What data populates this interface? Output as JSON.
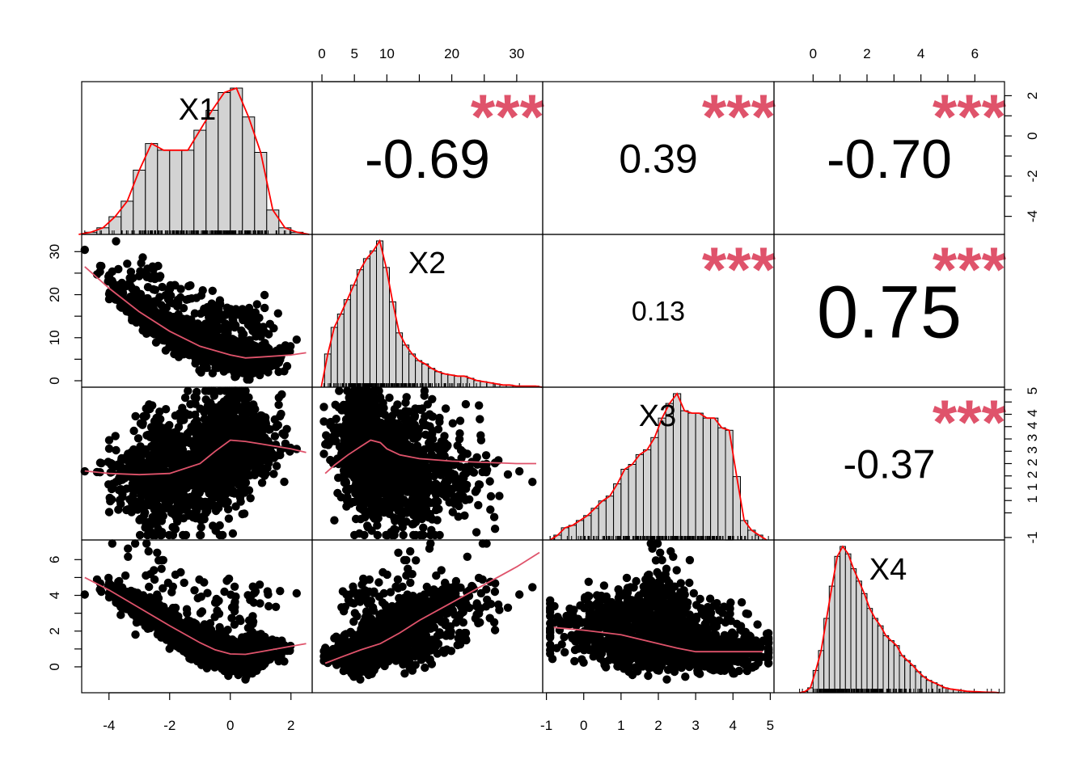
{
  "chart_data": {
    "type": "scatter",
    "title": "",
    "variables": [
      "X1",
      "X2",
      "X3",
      "X4"
    ],
    "ranges": {
      "X1": [
        -4.9,
        2.7
      ],
      "X2": [
        -1.5,
        34
      ],
      "X3": [
        -1.1,
        5.1
      ],
      "X4": [
        -1.45,
        7.1
      ]
    },
    "ticks": {
      "X1": [
        -4,
        -2,
        0,
        2
      ],
      "X2": [
        0,
        5,
        10,
        15,
        20,
        25,
        30
      ],
      "X3": [
        -1,
        0,
        1,
        2,
        3,
        4,
        5
      ],
      "X4": [
        0,
        1,
        2,
        3,
        4,
        5,
        6
      ]
    },
    "tick_labels": {
      "x1_bottom": [
        "-4",
        "-2",
        "0",
        "2"
      ],
      "x2_top": [
        "0",
        "5",
        "10",
        "20",
        "30"
      ],
      "x3_bottom": [
        "-1",
        "0",
        "1",
        "2",
        "3",
        "4",
        "5"
      ],
      "x4_top": [
        "0",
        "2",
        "4",
        "6"
      ],
      "y1_right": [
        "2",
        "0",
        "-2",
        "-4"
      ],
      "y2_left": [
        "0",
        "10",
        "20",
        "30"
      ],
      "y3_right": [
        "-1",
        "1",
        "1",
        "2",
        "2",
        "3",
        "3",
        "4",
        "4",
        "5"
      ],
      "y4_left": [
        "0",
        "2",
        "4",
        "6"
      ]
    },
    "histograms": {
      "X1": {
        "breaks": [
          -4.8,
          -4.4,
          -4.0,
          -3.6,
          -3.2,
          -2.8,
          -2.4,
          -2.0,
          -1.6,
          -1.2,
          -0.8,
          -0.4,
          0.0,
          0.4,
          0.8,
          1.2,
          1.6,
          2.0,
          2.4
        ],
        "density": [
          0.01,
          0.03,
          0.08,
          0.15,
          0.29,
          0.41,
          0.38,
          0.38,
          0.38,
          0.47,
          0.56,
          0.64,
          0.66,
          0.53,
          0.37,
          0.11,
          0.03,
          0.01
        ]
      },
      "X2": {
        "breaks": [
          0.4,
          1.4,
          2.4,
          3.4,
          4.4,
          5.4,
          6.4,
          7.4,
          8.4,
          9.4,
          10.4,
          11.4,
          12.4,
          13.4,
          14.4,
          15.4,
          16.4,
          17.4,
          18.4,
          19.4,
          20.4,
          21.4,
          22.4,
          23.4,
          24.4,
          25.4,
          26.4,
          27.4,
          28.4,
          29.4,
          30.4,
          31.4,
          32.4,
          33.4
        ],
        "density": [
          0.03,
          0.054,
          0.066,
          0.079,
          0.092,
          0.106,
          0.116,
          0.123,
          0.132,
          0.108,
          0.077,
          0.049,
          0.038,
          0.03,
          0.024,
          0.021,
          0.017,
          0.014,
          0.012,
          0.011,
          0.01,
          0.01,
          0.008,
          0.006,
          0.005,
          0.004,
          0.003,
          0.002,
          0.002,
          0.001,
          0.001,
          0.001,
          0.001
        ]
      },
      "X3": {
        "breaks": [
          -0.8,
          -0.6,
          -0.4,
          -0.2,
          0.0,
          0.2,
          0.4,
          0.6,
          0.8,
          1.0,
          1.2,
          1.4,
          1.6,
          1.8,
          2.0,
          2.2,
          2.4,
          2.6,
          2.8,
          3.0,
          3.2,
          3.4,
          3.6,
          3.8,
          4.0,
          4.2,
          4.4,
          4.6,
          4.8
        ],
        "density": [
          0.02,
          0.05,
          0.06,
          0.08,
          0.1,
          0.13,
          0.16,
          0.18,
          0.23,
          0.29,
          0.31,
          0.35,
          0.37,
          0.42,
          0.5,
          0.56,
          0.6,
          0.53,
          0.52,
          0.52,
          0.5,
          0.5,
          0.46,
          0.45,
          0.26,
          0.08,
          0.04,
          0.02
        ]
      },
      "X4": {
        "breaks": [
          -0.4,
          -0.2,
          0.0,
          0.2,
          0.4,
          0.6,
          0.8,
          1.0,
          1.2,
          1.4,
          1.6,
          1.8,
          2.0,
          2.2,
          2.4,
          2.6,
          2.8,
          3.0,
          3.2,
          3.4,
          3.6,
          3.8,
          4.0,
          4.2,
          4.4,
          4.6,
          4.8,
          5.0,
          5.2,
          5.4,
          5.6,
          5.8,
          6.0,
          6.2,
          6.4,
          6.6,
          6.8
        ],
        "density": [
          0.005,
          0.02,
          0.09,
          0.17,
          0.3,
          0.43,
          0.55,
          0.59,
          0.56,
          0.5,
          0.45,
          0.4,
          0.34,
          0.3,
          0.27,
          0.23,
          0.21,
          0.19,
          0.15,
          0.13,
          0.11,
          0.085,
          0.065,
          0.05,
          0.04,
          0.03,
          0.02,
          0.015,
          0.012,
          0.009,
          0.006,
          0.005,
          0.004,
          0.003,
          0.002,
          0.002
        ]
      }
    },
    "smooth_lines": {
      "X2_vs_X1": {
        "x": [
          -4.8,
          -4.0,
          -3.0,
          -2.0,
          -1.0,
          0.0,
          0.5,
          1.0,
          2.0,
          2.5
        ],
        "y": [
          26.5,
          21.5,
          16.0,
          11.5,
          8.0,
          6.0,
          5.3,
          5.5,
          6.0,
          6.5
        ]
      },
      "X3_vs_X1": {
        "x": [
          -4.8,
          -4.0,
          -3.0,
          -2.0,
          -1.0,
          -0.5,
          0.0,
          0.5,
          1.0,
          2.0,
          2.5
        ],
        "y": [
          1.7,
          1.6,
          1.55,
          1.6,
          2.0,
          2.5,
          2.95,
          2.9,
          2.8,
          2.6,
          2.45
        ]
      },
      "X3_vs_X2": {
        "x": [
          0.5,
          2.0,
          4.0,
          6.0,
          7.5,
          9.0,
          10.0,
          12.0,
          15.0,
          20.0,
          25.0,
          30.0,
          33.0
        ],
        "y": [
          1.6,
          1.95,
          2.35,
          2.7,
          2.95,
          2.85,
          2.6,
          2.35,
          2.2,
          2.1,
          2.05,
          2.0,
          2.0
        ]
      },
      "X4_vs_X1": {
        "x": [
          -4.8,
          -4.0,
          -3.0,
          -2.0,
          -1.0,
          -0.5,
          0.0,
          0.5,
          1.0,
          2.0,
          2.5
        ],
        "y": [
          5.0,
          4.3,
          3.3,
          2.3,
          1.35,
          0.95,
          0.72,
          0.7,
          0.85,
          1.15,
          1.3
        ]
      },
      "X4_vs_X2": {
        "x": [
          0.5,
          3.0,
          6.0,
          9.0,
          12.0,
          15.0,
          20.0,
          25.0,
          30.0,
          33.5
        ],
        "y": [
          0.2,
          0.55,
          0.95,
          1.3,
          1.9,
          2.6,
          3.6,
          4.6,
          5.6,
          6.4
        ]
      },
      "X4_vs_X3": {
        "x": [
          -0.8,
          0.0,
          1.0,
          2.0,
          2.5,
          3.0,
          4.0,
          4.8
        ],
        "y": [
          2.2,
          2.05,
          1.8,
          1.3,
          1.05,
          0.85,
          0.85,
          0.85
        ]
      }
    },
    "correlations": [
      {
        "pair": "X1-X2",
        "value": "-0.69",
        "stars": "***"
      },
      {
        "pair": "X1-X3",
        "value": "0.39",
        "stars": "***"
      },
      {
        "pair": "X1-X4",
        "value": "-0.70",
        "stars": "***"
      },
      {
        "pair": "X2-X3",
        "value": "0.13",
        "stars": "***"
      },
      {
        "pair": "X2-X4",
        "value": "0.75",
        "stars": "***"
      },
      {
        "pair": "X3-X4",
        "value": "-0.37",
        "stars": "***"
      }
    ],
    "colors": {
      "points": "#000000",
      "smooth": "#DF536B",
      "density": "#FF0000",
      "stars": "#DF536B",
      "hist_fill": "#D3D3D3",
      "frame": "#000000"
    }
  }
}
